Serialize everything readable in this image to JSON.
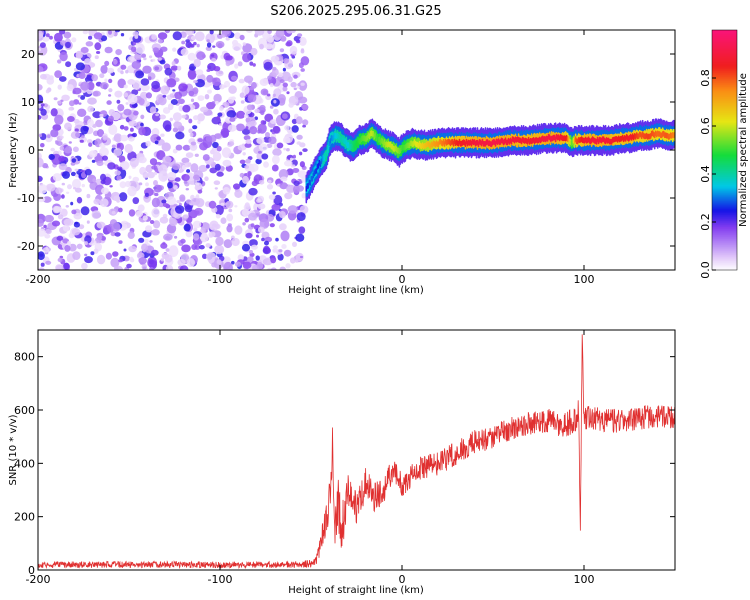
{
  "title": "S206.2025.295.06.31.G25",
  "chart_data": [
    {
      "type": "heatmap",
      "title": "S206.2025.295.06.31.G25",
      "xlabel": "Height of straight line (km)",
      "ylabel": "Frequency (Hz)",
      "xlim": [
        -200,
        150
      ],
      "ylim": [
        -25,
        25
      ],
      "xticks": [
        -200,
        -100,
        0,
        100
      ],
      "xtick_labels": [
        "-200",
        "-100",
        "0",
        "100"
      ],
      "yticks": [
        20,
        10,
        0,
        -10,
        -20
      ],
      "ytick_labels": [
        "20",
        "10",
        "0",
        "-10",
        "-20"
      ],
      "noise_region_x": [
        -200,
        -53
      ],
      "noise_amplitude_range": [
        0.0,
        0.5
      ],
      "signal_track": {
        "height_km": [
          -53,
          -50,
          -46,
          -42,
          -40,
          -37,
          -34,
          -30,
          -27,
          -24,
          -20,
          -17,
          -14,
          -11,
          -8,
          -5,
          -2,
          0,
          3,
          6,
          10,
          15,
          20,
          30,
          40,
          50,
          60,
          70,
          80,
          85,
          90,
          93,
          95,
          100,
          105,
          110,
          115,
          120,
          125,
          130,
          135,
          140,
          145,
          150
        ],
        "frequency_hz": [
          -8,
          -6,
          -3,
          -1,
          2,
          3,
          2.5,
          1,
          0.5,
          2,
          2.5,
          3.5,
          2.5,
          1.5,
          1,
          0.5,
          -0.5,
          0.5,
          1,
          1.5,
          1,
          1,
          1.5,
          1.5,
          1.5,
          1.5,
          2,
          2,
          2.5,
          2.5,
          2.5,
          1.5,
          2,
          2,
          2,
          2,
          2,
          2.5,
          2.5,
          3,
          3,
          3.5,
          3,
          3
        ],
        "amplitude": [
          0.25,
          0.3,
          0.25,
          0.4,
          0.3,
          0.35,
          0.4,
          0.35,
          0.45,
          0.5,
          0.55,
          0.6,
          0.5,
          0.55,
          0.6,
          0.6,
          0.55,
          0.5,
          0.55,
          0.6,
          0.65,
          0.7,
          0.75,
          0.85,
          0.9,
          0.92,
          0.9,
          0.88,
          0.92,
          0.9,
          0.85,
          0.5,
          0.8,
          0.88,
          0.9,
          0.9,
          0.88,
          0.85,
          0.88,
          0.8,
          0.82,
          0.78,
          0.8,
          0.75
        ]
      },
      "colorbar": {
        "label": "Normalized spectral amplitude",
        "ticks": [
          0.0,
          0.2,
          0.4,
          0.6,
          0.8
        ],
        "tick_labels": [
          "0.0",
          "0.2",
          "0.4",
          "0.6",
          "0.8"
        ],
        "range": [
          0.0,
          1.0
        ]
      }
    },
    {
      "type": "line",
      "xlabel": "Height of straight line (km)",
      "ylabel": "SNR (10 * v/v)",
      "xlim": [
        -200,
        150
      ],
      "ylim": [
        0,
        900
      ],
      "xticks": [
        -200,
        -100,
        0,
        100
      ],
      "xtick_labels": [
        "-200",
        "-100",
        "0",
        "100"
      ],
      "yticks": [
        0,
        200,
        400,
        600,
        800
      ],
      "ytick_labels": [
        "0",
        "200",
        "400",
        "600",
        "800"
      ],
      "color": "#e03030",
      "series": [
        {
          "name": "SNR",
          "x": [
            -200,
            -150,
            -100,
            -60,
            -48,
            -45,
            -40,
            -38,
            -37,
            -35,
            -33,
            -30,
            -25,
            -20,
            -15,
            -10,
            -5,
            0,
            10,
            20,
            30,
            40,
            50,
            60,
            70,
            80,
            90,
            95,
            97,
            98,
            99,
            100,
            102,
            110,
            120,
            130,
            140,
            150
          ],
          "y": [
            20,
            20,
            20,
            20,
            25,
            80,
            250,
            480,
            120,
            260,
            150,
            300,
            230,
            330,
            270,
            300,
            380,
            320,
            380,
            400,
            440,
            480,
            500,
            530,
            550,
            560,
            540,
            560,
            600,
            160,
            880,
            560,
            580,
            560,
            560,
            570,
            580,
            570
          ],
          "noise": [
            12,
            12,
            12,
            12,
            15,
            40,
            90,
            120,
            60,
            120,
            90,
            80,
            70,
            60,
            55,
            50,
            45,
            45,
            45,
            45,
            45,
            45,
            45,
            45,
            45,
            45,
            50,
            60,
            60,
            30,
            30,
            50,
            50,
            45,
            45,
            45,
            45,
            45
          ]
        }
      ]
    }
  ]
}
